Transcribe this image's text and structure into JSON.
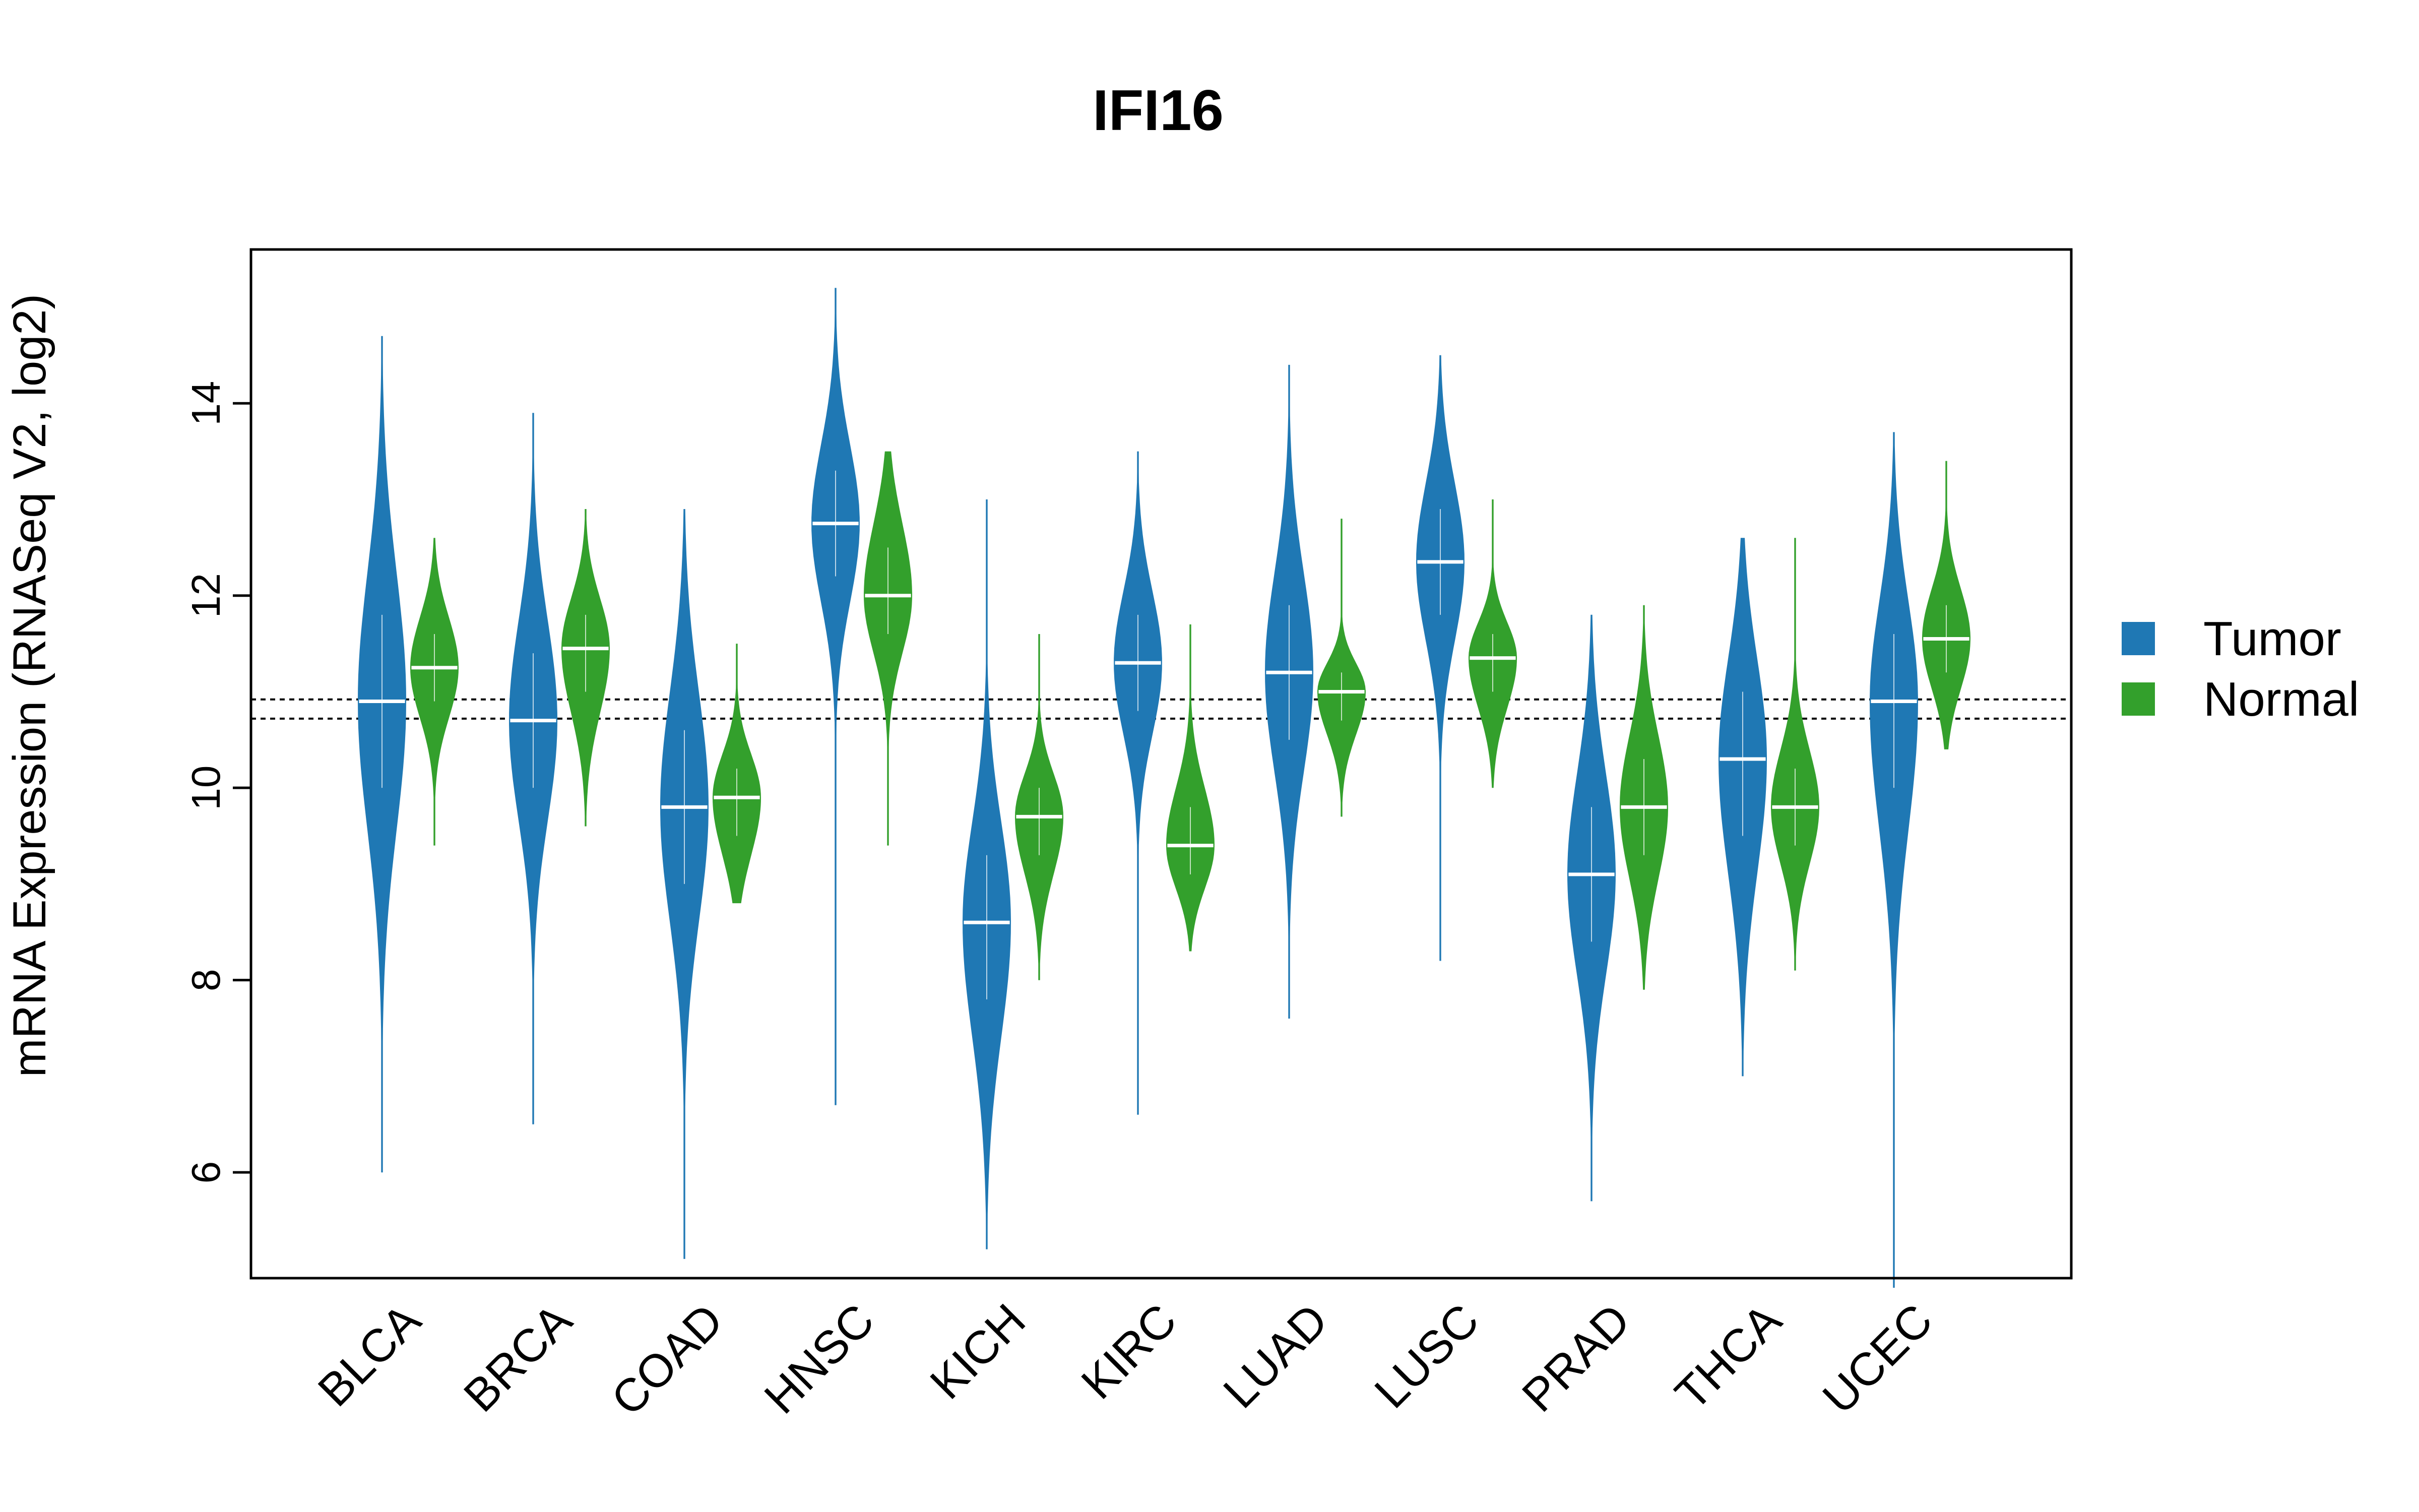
{
  "chart_data": {
    "type": "violin",
    "title": "IFI16",
    "xlabel": "",
    "ylabel": "mRNA Expression (RNASeq V2, log2)",
    "ylim": [
      4.9,
      15.6
    ],
    "yticks": [
      6,
      8,
      10,
      12,
      14
    ],
    "categories": [
      "BLCA",
      "BRCA",
      "COAD",
      "HNSC",
      "KICH",
      "KIRC",
      "LUAD",
      "LUSC",
      "PRAD",
      "THCA",
      "UCEC"
    ],
    "reference_lines": [
      10.72,
      10.92
    ],
    "legend": {
      "position": "right",
      "entries": [
        {
          "label": "Tumor",
          "color": "#1f78b4"
        },
        {
          "label": "Normal",
          "color": "#33a02c"
        }
      ]
    },
    "series": [
      {
        "name": "Tumor",
        "color": "#1f78b4",
        "median": [
          10.9,
          10.7,
          9.8,
          12.75,
          8.6,
          11.3,
          11.2,
          12.35,
          9.1,
          10.3,
          10.9
        ],
        "q1": [
          10.0,
          10.0,
          9.0,
          12.2,
          7.8,
          10.8,
          10.5,
          11.8,
          8.4,
          9.5,
          10.0
        ],
        "q3": [
          11.8,
          11.4,
          10.6,
          13.3,
          9.3,
          11.8,
          11.9,
          12.9,
          9.8,
          11.0,
          11.6
        ],
        "min": [
          6.0,
          6.5,
          5.1,
          6.7,
          5.2,
          6.6,
          7.6,
          8.2,
          5.7,
          7.0,
          4.8
        ],
        "max": [
          14.7,
          13.9,
          12.9,
          15.2,
          13.0,
          13.5,
          14.4,
          14.5,
          11.8,
          12.6,
          13.7
        ]
      },
      {
        "name": "Normal",
        "color": "#33a02c",
        "median": [
          11.25,
          11.45,
          9.9,
          12.0,
          9.7,
          9.4,
          11.0,
          11.35,
          9.8,
          9.8,
          11.55
        ],
        "q1": [
          10.9,
          11.0,
          9.5,
          11.6,
          9.3,
          9.1,
          10.7,
          11.0,
          9.3,
          9.4,
          11.2
        ],
        "q3": [
          11.6,
          11.8,
          10.2,
          12.5,
          10.0,
          9.8,
          11.2,
          11.6,
          10.3,
          10.2,
          11.9
        ],
        "min": [
          9.4,
          9.6,
          8.8,
          9.4,
          8.0,
          8.3,
          9.7,
          10.0,
          7.9,
          8.1,
          10.4
        ],
        "max": [
          12.6,
          12.9,
          11.5,
          13.5,
          11.6,
          11.7,
          12.8,
          13.0,
          11.9,
          12.6,
          13.4
        ]
      }
    ]
  }
}
